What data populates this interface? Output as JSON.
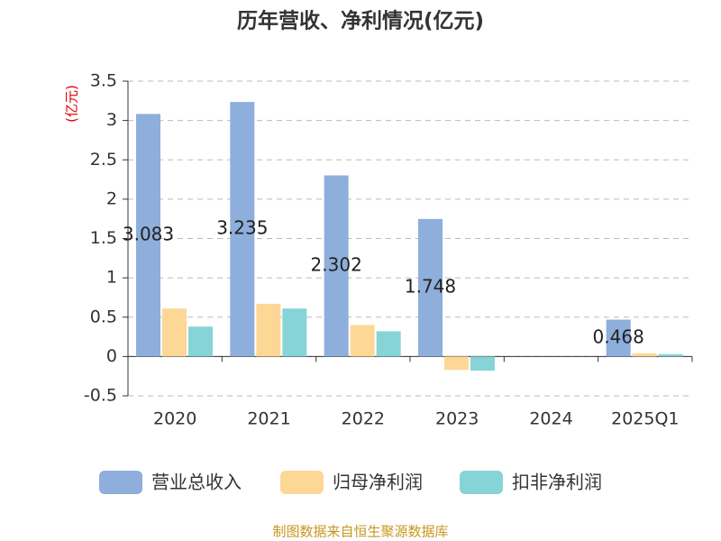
{
  "chart_data": {
    "type": "bar",
    "title": "历年营收、净利情况(亿元)",
    "y_label": "(亿元)",
    "categories": [
      "2020",
      "2021",
      "2022",
      "2023",
      "2024",
      "2025Q1"
    ],
    "series": [
      {
        "name": "营业总收入",
        "color": "#8eaedb",
        "values": [
          3.083,
          3.235,
          2.302,
          1.748,
          null,
          0.468
        ]
      },
      {
        "name": "归母净利润",
        "color": "#fdd796",
        "values": [
          0.61,
          0.67,
          0.4,
          -0.17,
          null,
          0.04
        ]
      },
      {
        "name": "扣非净利润",
        "color": "#86d4d8",
        "values": [
          0.38,
          0.61,
          0.32,
          -0.18,
          null,
          0.03
        ]
      }
    ],
    "ylim": [
      -0.5,
      3.5
    ],
    "yticks": [
      -0.5,
      0,
      0.5,
      1,
      1.5,
      2,
      2.5,
      3,
      3.5
    ],
    "grid": true,
    "source": "制图数据来自恒生聚源数据库"
  }
}
